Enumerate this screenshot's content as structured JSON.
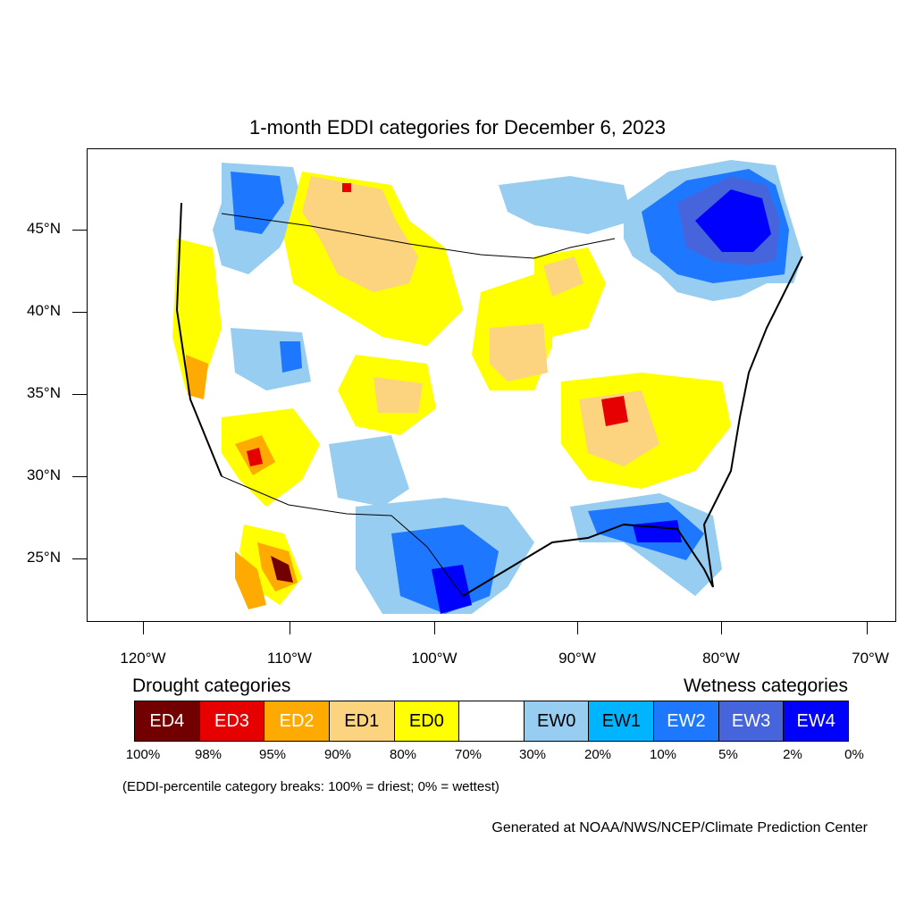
{
  "title": "1-month EDDI categories for December 6, 2023",
  "lat_labels": [
    "45°N",
    "40°N",
    "35°N",
    "30°N",
    "25°N"
  ],
  "lon_labels": [
    "120°W",
    "110°W",
    "100°W",
    "90°W",
    "80°W",
    "70°W"
  ],
  "legend": {
    "drought_heading": "Drought categories",
    "wetness_heading": "Wetness categories",
    "categories": [
      {
        "label": "ED4",
        "color": "#730000",
        "text_color": "#ffffff"
      },
      {
        "label": "ED3",
        "color": "#e60000",
        "text_color": "#ffffff"
      },
      {
        "label": "ED2",
        "color": "#ffaa00",
        "text_color": "#ffffff"
      },
      {
        "label": "ED1",
        "color": "#fcd37f",
        "text_color": "#000000"
      },
      {
        "label": "ED0",
        "color": "#ffff00",
        "text_color": "#000000"
      },
      {
        "label": "",
        "color": "#ffffff",
        "text_color": "#000000"
      },
      {
        "label": "EW0",
        "color": "#96cdf0",
        "text_color": "#000000"
      },
      {
        "label": "EW1",
        "color": "#00b4ff",
        "text_color": "#000000"
      },
      {
        "label": "EW2",
        "color": "#1e78ff",
        "text_color": "#ffffff"
      },
      {
        "label": "EW3",
        "color": "#4664dc",
        "text_color": "#ffffff"
      },
      {
        "label": "EW4",
        "color": "#0000ff",
        "text_color": "#ffffff"
      }
    ],
    "percentiles": [
      "100%",
      "98%",
      "95%",
      "90%",
      "80%",
      "70%",
      "30%",
      "20%",
      "10%",
      "5%",
      "2%",
      "0%"
    ]
  },
  "breaks_note": "(EDDI-percentile category breaks: 100% = driest; 0% = wettest)",
  "credit": "Generated at NOAA/NWS/NCEP/Climate Prediction Center"
}
